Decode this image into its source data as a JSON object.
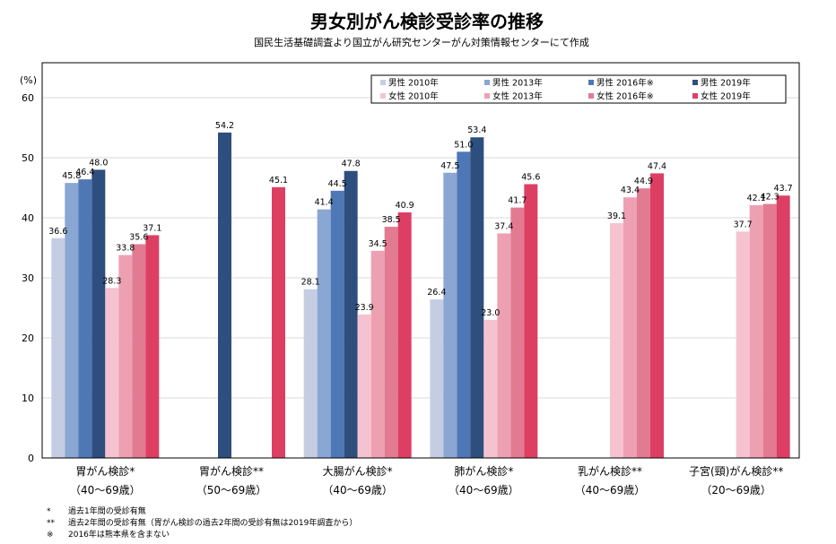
{
  "chart_data": {
    "type": "bar",
    "title": "男女別がん検診受診率の推移",
    "subtitle": "国民生活基礎調査より国立がん研究センターがん対策情報センターにて作成",
    "ylabel": "(%)",
    "ylim": [
      0,
      60
    ],
    "yticks": [
      "0",
      "10",
      "20",
      "30",
      "40",
      "50",
      "60"
    ],
    "grid": true,
    "legend_position": "top-right",
    "categories": [
      {
        "name": "胃がん検診*",
        "age": "（40〜69歳）"
      },
      {
        "name": "胃がん検診**",
        "age": "（50〜69歳）"
      },
      {
        "name": "大腸がん検診*",
        "age": "（40〜69歳）"
      },
      {
        "name": "肺がん検診*",
        "age": "（40〜69歳）"
      },
      {
        "name": "乳がん検診**",
        "age": "（40〜69歳）"
      },
      {
        "name": "子宮(頸)がん検診**",
        "age": "（20〜69歳）"
      }
    ],
    "series": [
      {
        "name": "男性 2010年",
        "color": "#c5cde2",
        "values": [
          36.6,
          null,
          28.1,
          26.4,
          null,
          null
        ]
      },
      {
        "name": "男性 2013年",
        "color": "#8aa6d2",
        "values": [
          45.8,
          null,
          41.4,
          47.5,
          null,
          null
        ]
      },
      {
        "name": "男性 2016年※",
        "color": "#4e78b5",
        "values": [
          46.4,
          null,
          44.5,
          51.0,
          null,
          null
        ]
      },
      {
        "name": "男性 2019年",
        "color": "#2e4e7e",
        "values": [
          48.0,
          54.2,
          47.8,
          53.4,
          null,
          null
        ]
      },
      {
        "name": "女性 2010年",
        "color": "#f5c3cf",
        "values": [
          28.3,
          null,
          23.9,
          23.0,
          39.1,
          37.7
        ]
      },
      {
        "name": "女性 2013年",
        "color": "#eea0b3",
        "values": [
          33.8,
          null,
          34.5,
          37.4,
          43.4,
          42.1
        ]
      },
      {
        "name": "女性 2016年※",
        "color": "#e27a92",
        "values": [
          35.6,
          null,
          38.5,
          41.7,
          44.9,
          42.3
        ]
      },
      {
        "name": "女性 2019年",
        "color": "#dd3f63",
        "values": [
          37.1,
          45.1,
          40.9,
          45.6,
          47.4,
          43.7
        ]
      }
    ]
  },
  "notes": [
    {
      "mark": "*",
      "text": "過去1年間の受診有無"
    },
    {
      "mark": "**",
      "text": "過去2年間の受診有無（胃がん検診の過去2年間の受診有無は2019年調査から）"
    },
    {
      "mark": "※",
      "text": "2016年は熊本県を含まない"
    }
  ]
}
